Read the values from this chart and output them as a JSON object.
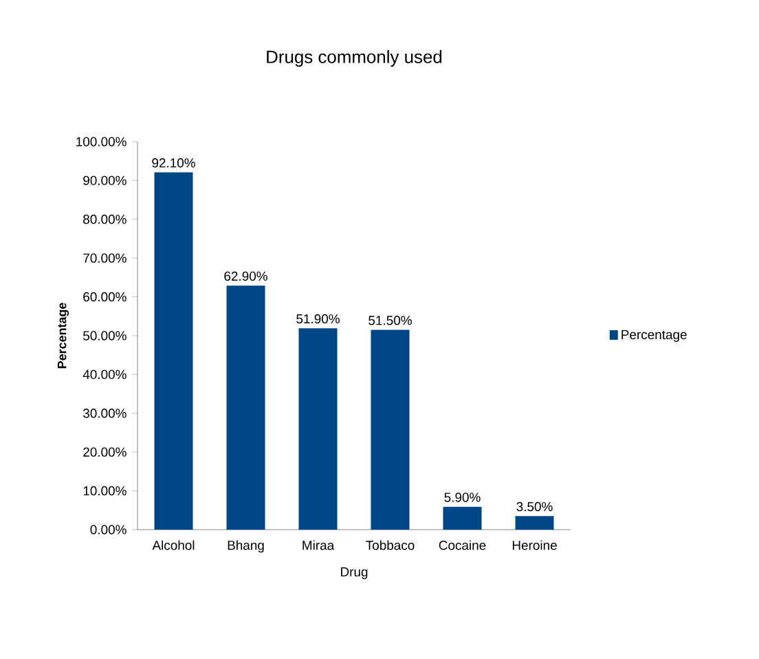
{
  "chart_data": {
    "type": "bar",
    "title": "Drugs commonly used",
    "xlabel": "Drug",
    "ylabel": "Percentage",
    "categories": [
      "Alcohol",
      "Bhang",
      "Miraa",
      "Tobbaco",
      "Cocaine",
      "Heroine"
    ],
    "series": [
      {
        "name": "Percentage",
        "color": "#004586",
        "values": [
          92.1,
          62.9,
          51.9,
          51.5,
          5.9,
          3.5
        ],
        "value_labels": [
          "92.10%",
          "62.90%",
          "51.90%",
          "51.50%",
          "5.90%",
          "3.50%"
        ]
      }
    ],
    "ylim": [
      0,
      100
    ],
    "yticks": [
      {
        "value": 0,
        "label": "0.00%"
      },
      {
        "value": 10,
        "label": "10.00%"
      },
      {
        "value": 20,
        "label": "20.00%"
      },
      {
        "value": 30,
        "label": "30.00%"
      },
      {
        "value": 40,
        "label": "40.00%"
      },
      {
        "value": 50,
        "label": "50.00%"
      },
      {
        "value": 60,
        "label": "60.00%"
      },
      {
        "value": 70,
        "label": "70.00%"
      },
      {
        "value": 80,
        "label": "80.00%"
      },
      {
        "value": 90,
        "label": "90.00%"
      },
      {
        "value": 100,
        "label": "100.00%"
      }
    ],
    "grid": false,
    "legend": "right"
  }
}
